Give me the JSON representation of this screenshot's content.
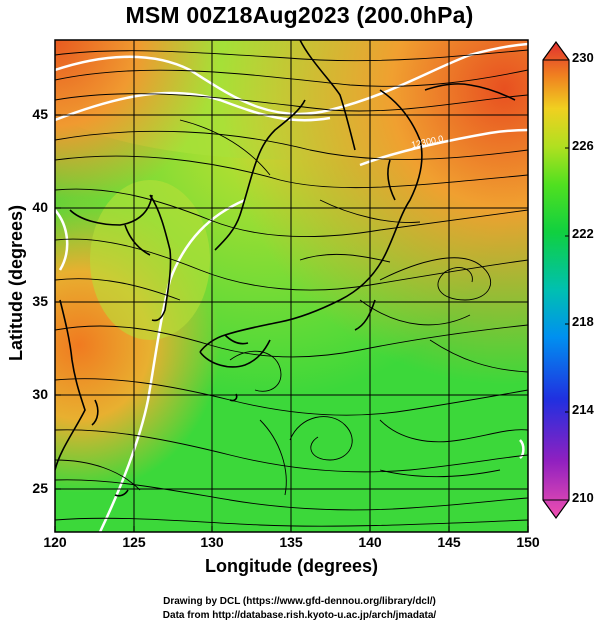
{
  "title": "MSM 00Z18Aug2023 (200.0hPa)",
  "xlabel": "Longitude (degrees)",
  "ylabel": "Latitude  (degrees)",
  "credits": {
    "line1": "Drawing by DCL (https://www.gfd-dennou.org/library/dcl/)",
    "line2": "Data from http://database.rish.kyoto-u.ac.jp/arch/jmadata/"
  },
  "map": {
    "lon_range": [
      120,
      150
    ],
    "lat_range": [
      22.5,
      47.5
    ],
    "lon_ticks": [
      "120",
      "125",
      "130",
      "135",
      "140",
      "145",
      "150"
    ],
    "lat_ticks": [
      "25",
      "30",
      "35",
      "40",
      "45"
    ],
    "contour_label": "12300.0",
    "field_colors": {
      "warm": "#f0a030",
      "mid": "#a0e040",
      "cool": "#30e040"
    }
  },
  "colorbar": {
    "min": 210,
    "max": 230,
    "tick_labels": [
      "230",
      "226",
      "222",
      "218",
      "214",
      "210"
    ],
    "colors": [
      "#e040a0",
      "#8000c0",
      "#2040e0",
      "#0090e0",
      "#00c0c0",
      "#00c060",
      "#30d030",
      "#90e020",
      "#d0e020",
      "#f0c020",
      "#f08020",
      "#e04030"
    ]
  }
}
